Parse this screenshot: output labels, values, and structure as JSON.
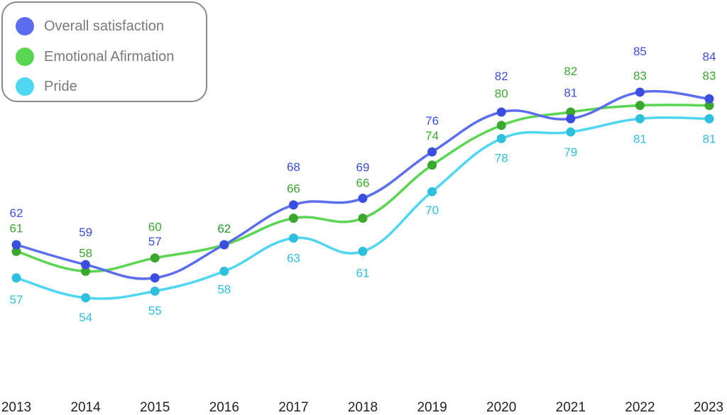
{
  "chart_data": {
    "type": "line",
    "categories": [
      "2013",
      "2014",
      "2015",
      "2016",
      "2017",
      "2018",
      "2019",
      "2020",
      "2021",
      "2022",
      "2023"
    ],
    "series": [
      {
        "name": "Overall satisfaction",
        "color": "#5b6ef0",
        "values": [
          62,
          59,
          57,
          62,
          68,
          69,
          76,
          82,
          81,
          85,
          84
        ]
      },
      {
        "name": "Emotional Afirmation",
        "color": "#5bd653",
        "values": [
          61,
          58,
          60,
          62,
          66,
          66,
          74,
          80,
          82,
          83,
          83
        ]
      },
      {
        "name": "Pride",
        "color": "#4fd6f2",
        "values": [
          57,
          54,
          55,
          58,
          63,
          61,
          70,
          78,
          79,
          81,
          81
        ]
      }
    ],
    "label_colors": [
      "#3a4fe0",
      "#3aa82f",
      "#2fc0de"
    ],
    "legend_position": "top-left",
    "grid": false
  }
}
